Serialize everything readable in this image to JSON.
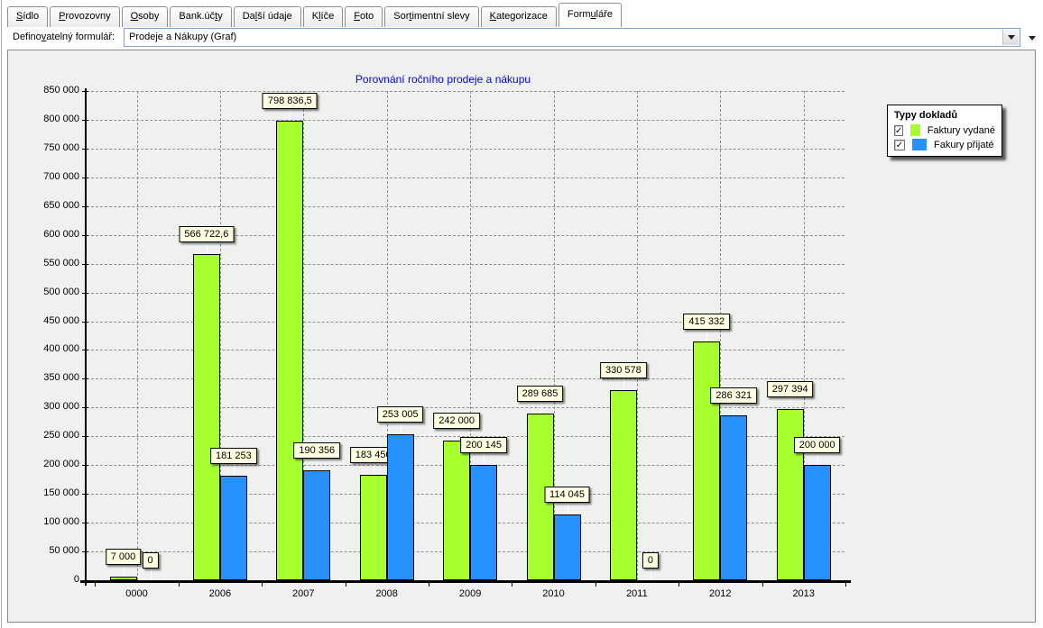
{
  "tabs": [
    {
      "pre": "",
      "key": "S",
      "post": "ídlo",
      "active": false
    },
    {
      "pre": "",
      "key": "P",
      "post": "rovozovny",
      "active": false
    },
    {
      "pre": "",
      "key": "O",
      "post": "soby",
      "active": false
    },
    {
      "pre": "Bank.úč",
      "key": "t",
      "post": "y",
      "active": false
    },
    {
      "pre": "Da",
      "key": "l",
      "post": "ší údaje",
      "active": false
    },
    {
      "pre": "K",
      "key": "l",
      "post": "íče",
      "active": false
    },
    {
      "pre": "",
      "key": "F",
      "post": "oto",
      "active": false
    },
    {
      "pre": "Sor",
      "key": "t",
      "post": "imentní slevy",
      "active": false
    },
    {
      "pre": "",
      "key": "K",
      "post": "ategorizace",
      "active": false
    },
    {
      "pre": "Form",
      "key": "u",
      "post": "láře",
      "active": true
    }
  ],
  "form": {
    "label_pre": "Defino",
    "label_key": "v",
    "label_post": "atelný formulář:",
    "combo_value": "Prodeje a Nákupy (Graf)"
  },
  "chart_data": {
    "type": "bar",
    "title": "Porovnání ročního prodeje a nákupu",
    "title_color": "#0000ff",
    "categories": [
      "0000",
      "2006",
      "2007",
      "2008",
      "2009",
      "2010",
      "2011",
      "2012",
      "2013"
    ],
    "series": [
      {
        "name": "Faktury vydané",
        "color": "#a8ff2f",
        "values": [
          7000,
          566722.6,
          798836.5,
          183450,
          242000,
          289685,
          330578,
          415332,
          297394
        ],
        "labels": [
          "7 000",
          "566 722,6",
          "798 836,5",
          "183 450",
          "242 000",
          "289 685",
          "330 578",
          "415 332",
          "297 394"
        ]
      },
      {
        "name": "Fakury přijaté",
        "color": "#2791fb",
        "values": [
          0,
          181253,
          190356,
          253005,
          200145,
          114045,
          0,
          286321,
          200000
        ],
        "labels": [
          "0",
          "181 253",
          "190 356",
          "253 005",
          "200 145",
          "114 045",
          "0",
          "286 321",
          "200 000"
        ]
      }
    ],
    "ylim": [
      0,
      850000
    ],
    "ytick_step": 50000,
    "ytick_labels": [
      "0",
      "50 000",
      "100 000",
      "150 000",
      "200 000",
      "250 000",
      "300 000",
      "350 000",
      "400 000",
      "450 000",
      "500 000",
      "550 000",
      "600 000",
      "650 000",
      "700 000",
      "750 000",
      "800 000",
      "850 000"
    ],
    "grid": "dashed",
    "value_label_bg": "#ffffe1",
    "legend": {
      "title": "Typy dokladů",
      "position": "top-right",
      "checked": [
        true,
        true
      ]
    }
  }
}
